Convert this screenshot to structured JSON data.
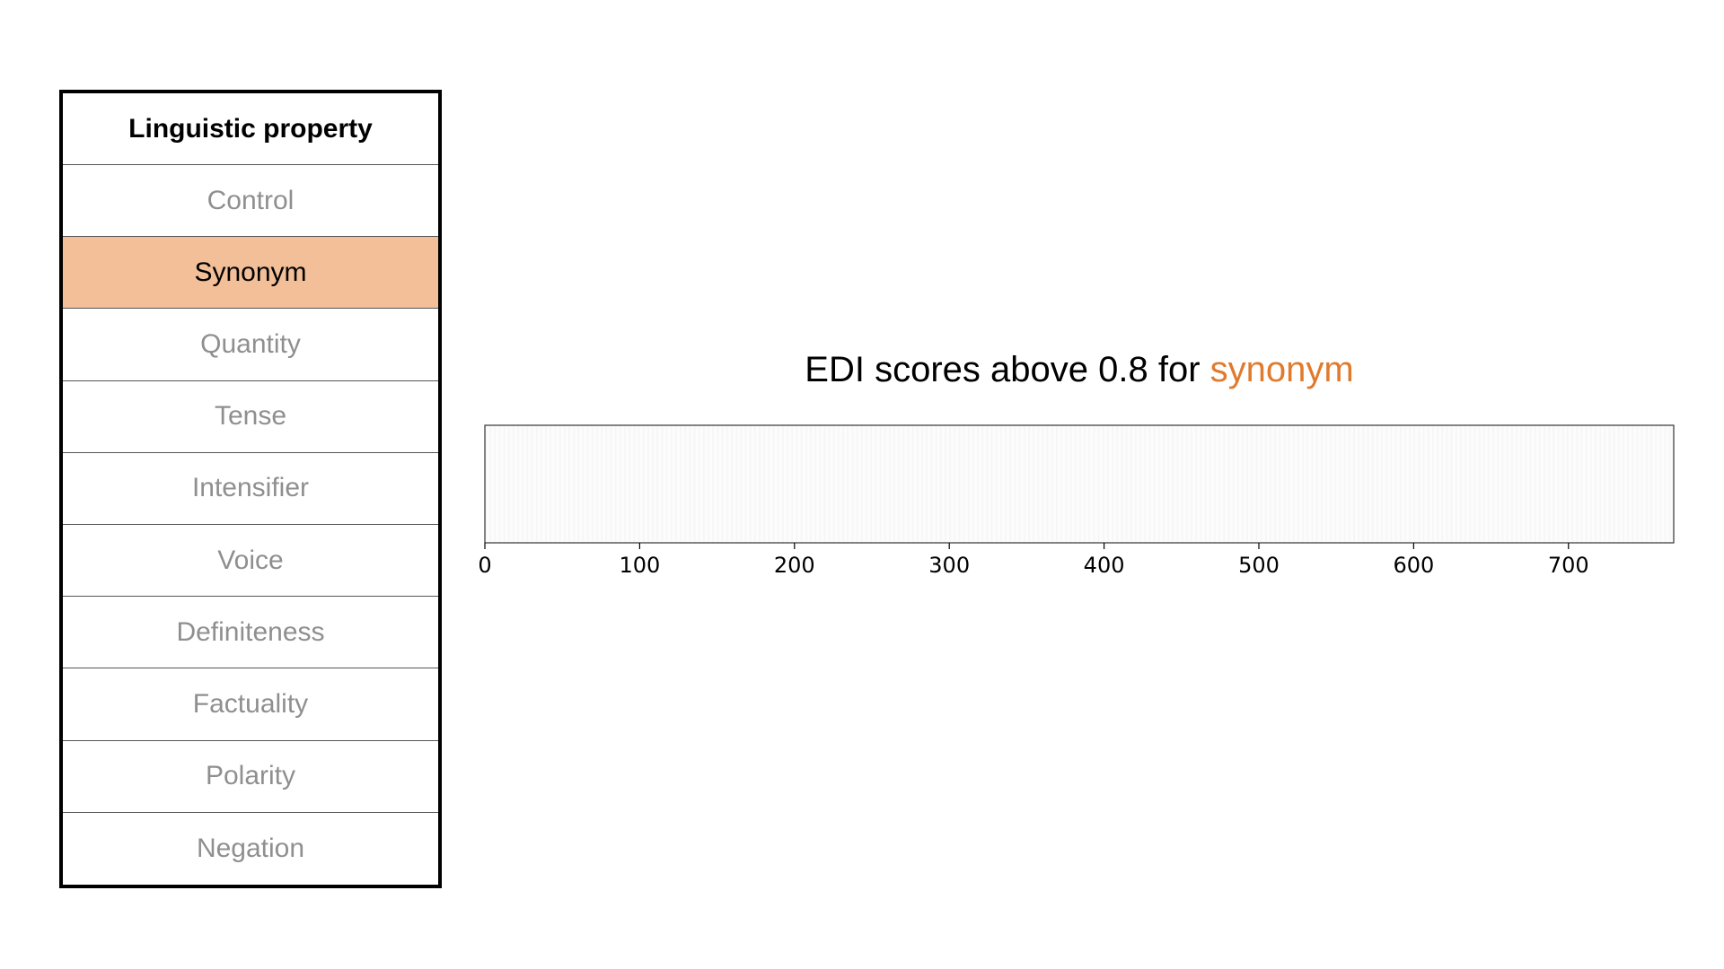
{
  "table": {
    "header": "Linguistic property",
    "selected_index": 1,
    "selected_color": "#f2bf98",
    "rows": [
      "Control",
      "Synonym",
      "Quantity",
      "Tense",
      "Intensifier",
      "Voice",
      "Definiteness",
      "Factuality",
      "Polarity",
      "Negation"
    ]
  },
  "chart": {
    "title_prefix": "EDI scores above 0.8 for",
    "title_highlight": "synonym",
    "highlight_color": "#e07b2e"
  },
  "chart_data": {
    "type": "heatmap",
    "title": "EDI scores above 0.8 for synonym",
    "xlabel": "",
    "ylabel": "",
    "xlim": [
      0,
      768
    ],
    "x_ticks": [
      0,
      100,
      200,
      300,
      400,
      500,
      600,
      700
    ],
    "values_shown": "no dimensions highlighted (all cells near-white)",
    "grid": false
  }
}
